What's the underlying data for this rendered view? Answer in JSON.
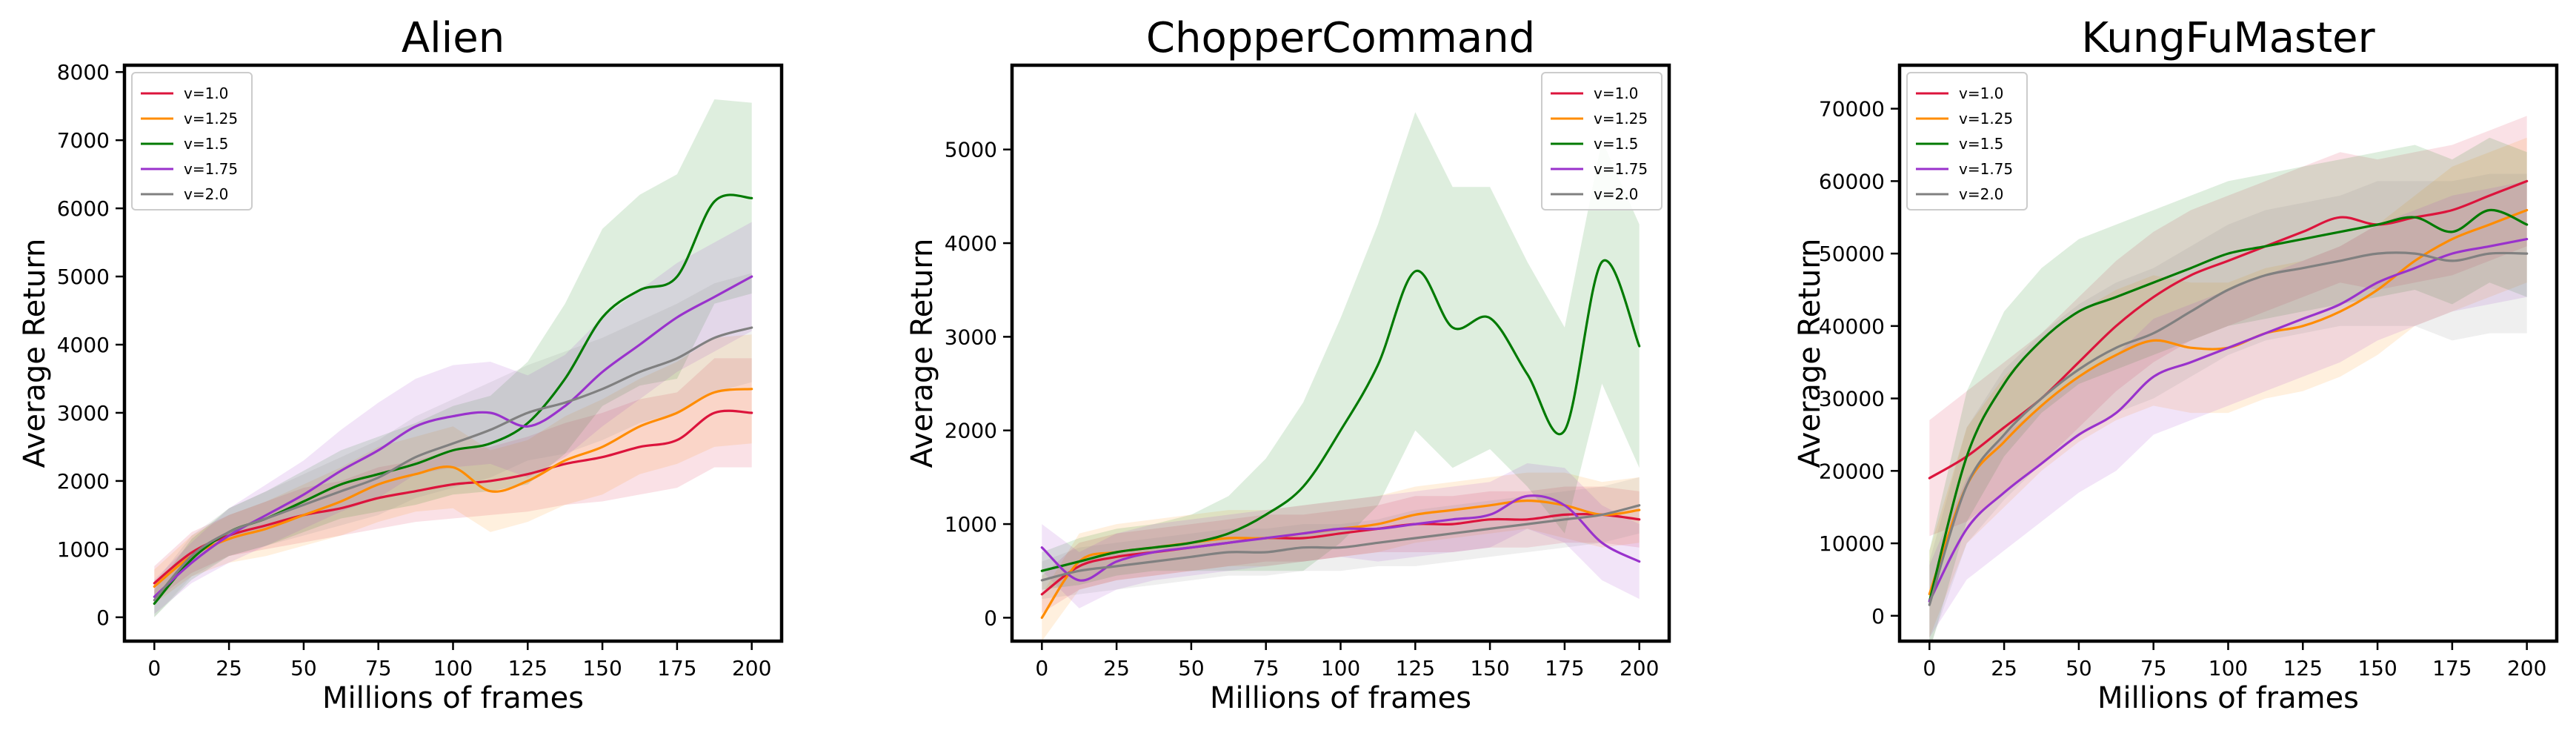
{
  "chart_data": [
    {
      "type": "line",
      "title": "Alien",
      "xlabel": "Millions of frames",
      "ylabel": "Average Return",
      "xlim": [
        -10,
        210
      ],
      "ylim": [
        -350,
        8100
      ],
      "xticks": [
        0,
        25,
        50,
        75,
        100,
        125,
        150,
        175,
        200
      ],
      "yticks": [
        0,
        1000,
        2000,
        3000,
        4000,
        5000,
        6000,
        7000,
        8000
      ],
      "legend_position": "top-left",
      "grid": false,
      "x": [
        0,
        12.5,
        25,
        37.5,
        50,
        62.5,
        75,
        87.5,
        100,
        112.5,
        125,
        137.5,
        150,
        162.5,
        175,
        187.5,
        200
      ],
      "series": [
        {
          "name": "v=1.0",
          "color": "#dc143c",
          "values": [
            500,
            950,
            1200,
            1350,
            1500,
            1600,
            1750,
            1850,
            1950,
            2000,
            2100,
            2250,
            2350,
            2500,
            2600,
            3000,
            3000
          ],
          "spread": [
            250,
            300,
            300,
            350,
            400,
            400,
            450,
            450,
            500,
            500,
            550,
            600,
            650,
            700,
            700,
            800,
            800
          ]
        },
        {
          "name": "v=1.25",
          "color": "#ff8c00",
          "values": [
            450,
            900,
            1150,
            1300,
            1500,
            1700,
            1950,
            2100,
            2200,
            1850,
            2000,
            2300,
            2500,
            2800,
            3000,
            3300,
            3350
          ],
          "spread": [
            250,
            300,
            350,
            400,
            450,
            500,
            550,
            550,
            600,
            600,
            600,
            650,
            700,
            700,
            750,
            800,
            800
          ]
        },
        {
          "name": "v=1.5",
          "color": "#007a00",
          "values": [
            200,
            850,
            1250,
            1450,
            1700,
            1950,
            2100,
            2250,
            2450,
            2550,
            2850,
            3500,
            4400,
            4800,
            5000,
            6100,
            6150
          ],
          "spread": [
            200,
            300,
            350,
            400,
            450,
            500,
            550,
            600,
            650,
            700,
            900,
            1100,
            1300,
            1400,
            1500,
            1500,
            1400
          ]
        },
        {
          "name": "v=1.75",
          "color": "#9932cc",
          "values": [
            300,
            800,
            1200,
            1500,
            1800,
            2150,
            2450,
            2800,
            2950,
            3000,
            2800,
            3100,
            3600,
            4000,
            4400,
            4700,
            5000
          ],
          "spread": [
            250,
            300,
            400,
            450,
            500,
            600,
            700,
            700,
            750,
            750,
            750,
            750,
            800,
            800,
            800,
            800,
            800
          ]
        },
        {
          "name": "v=2.0",
          "color": "#808080",
          "values": [
            250,
            900,
            1250,
            1450,
            1650,
            1850,
            2050,
            2350,
            2550,
            2750,
            3000,
            3150,
            3350,
            3600,
            3800,
            4100,
            4250
          ],
          "spread": [
            250,
            300,
            350,
            400,
            450,
            500,
            550,
            600,
            650,
            700,
            700,
            750,
            750,
            750,
            800,
            800,
            800
          ]
        }
      ]
    },
    {
      "type": "line",
      "title": "ChopperCommand",
      "xlabel": "Millions of frames",
      "ylabel": "Average Return",
      "xlim": [
        -10,
        210
      ],
      "ylim": [
        -250,
        5900
      ],
      "xticks": [
        0,
        25,
        50,
        75,
        100,
        125,
        150,
        175,
        200
      ],
      "yticks": [
        0,
        1000,
        2000,
        3000,
        4000,
        5000
      ],
      "legend_position": "top-right",
      "grid": false,
      "x": [
        0,
        12.5,
        25,
        37.5,
        50,
        62.5,
        75,
        87.5,
        100,
        112.5,
        125,
        137.5,
        150,
        162.5,
        175,
        187.5,
        200
      ],
      "series": [
        {
          "name": "v=1.0",
          "color": "#dc143c",
          "values": [
            250,
            550,
            650,
            700,
            750,
            800,
            850,
            850,
            900,
            950,
            1000,
            1000,
            1050,
            1050,
            1100,
            1100,
            1050
          ],
          "spread": [
            200,
            250,
            250,
            250,
            250,
            250,
            250,
            250,
            250,
            250,
            300,
            300,
            300,
            300,
            300,
            300,
            300
          ]
        },
        {
          "name": "v=1.25",
          "color": "#ff8c00",
          "values": [
            0,
            600,
            700,
            750,
            800,
            850,
            850,
            900,
            950,
            1000,
            1100,
            1150,
            1200,
            1250,
            1200,
            1100,
            1150
          ],
          "spread": [
            250,
            300,
            300,
            300,
            300,
            300,
            300,
            300,
            300,
            300,
            300,
            300,
            300,
            300,
            350,
            350,
            350
          ]
        },
        {
          "name": "v=1.5",
          "color": "#007a00",
          "values": [
            500,
            600,
            700,
            750,
            800,
            900,
            1100,
            1400,
            2000,
            2700,
            3700,
            3100,
            3200,
            2600,
            2000,
            3800,
            2900
          ],
          "spread": [
            200,
            250,
            250,
            250,
            300,
            400,
            600,
            900,
            1200,
            1500,
            1700,
            1500,
            1400,
            1200,
            1100,
            1300,
            1300
          ]
        },
        {
          "name": "v=1.75",
          "color": "#9932cc",
          "values": [
            750,
            400,
            600,
            700,
            750,
            800,
            850,
            900,
            950,
            950,
            1000,
            1050,
            1100,
            1300,
            1200,
            800,
            600
          ],
          "spread": [
            250,
            300,
            300,
            300,
            300,
            300,
            300,
            300,
            300,
            350,
            350,
            350,
            350,
            350,
            400,
            400,
            400
          ]
        },
        {
          "name": "v=2.0",
          "color": "#808080",
          "values": [
            400,
            500,
            550,
            600,
            650,
            700,
            700,
            750,
            750,
            800,
            850,
            900,
            950,
            1000,
            1050,
            1100,
            1200
          ],
          "spread": [
            200,
            250,
            250,
            250,
            250,
            250,
            250,
            250,
            250,
            250,
            300,
            300,
            300,
            300,
            300,
            300,
            300
          ]
        }
      ]
    },
    {
      "type": "line",
      "title": "KungFuMaster",
      "xlabel": "Millions of frames",
      "ylabel": "Average Return",
      "xlim": [
        -10,
        210
      ],
      "ylim": [
        -3500,
        76000
      ],
      "xticks": [
        0,
        25,
        50,
        75,
        100,
        125,
        150,
        175,
        200
      ],
      "yticks": [
        0,
        10000,
        20000,
        30000,
        40000,
        50000,
        60000,
        70000
      ],
      "legend_position": "top-left",
      "grid": false,
      "x": [
        0,
        12.5,
        25,
        37.5,
        50,
        62.5,
        75,
        87.5,
        100,
        112.5,
        125,
        137.5,
        150,
        162.5,
        175,
        187.5,
        200
      ],
      "series": [
        {
          "name": "v=1.0",
          "color": "#dc143c",
          "values": [
            19000,
            22000,
            26000,
            30000,
            35000,
            40000,
            44000,
            47000,
            49000,
            51000,
            53000,
            55000,
            54000,
            55000,
            56000,
            58000,
            60000
          ],
          "spread": [
            8000,
            9000,
            9000,
            9000,
            9000,
            9000,
            9000,
            9000,
            9000,
            9000,
            9000,
            9000,
            9000,
            9000,
            9000,
            9000,
            9000
          ]
        },
        {
          "name": "v=1.25",
          "color": "#ff8c00",
          "values": [
            3000,
            18000,
            24000,
            29000,
            33000,
            36000,
            38000,
            37000,
            37000,
            39000,
            40000,
            42000,
            45000,
            49000,
            52000,
            54000,
            56000
          ],
          "spread": [
            6000,
            8000,
            9000,
            9000,
            9000,
            9000,
            9000,
            9000,
            9000,
            9000,
            9000,
            9000,
            9000,
            9000,
            10000,
            10000,
            10000
          ]
        },
        {
          "name": "v=1.5",
          "color": "#007a00",
          "values": [
            2000,
            22000,
            32000,
            38000,
            42000,
            44000,
            46000,
            48000,
            50000,
            51000,
            52000,
            53000,
            54000,
            55000,
            53000,
            56000,
            54000
          ],
          "spread": [
            7000,
            9000,
            10000,
            10000,
            10000,
            10000,
            10000,
            10000,
            10000,
            10000,
            10000,
            10000,
            10000,
            10000,
            10000,
            10000,
            10000
          ]
        },
        {
          "name": "v=1.75",
          "color": "#9932cc",
          "values": [
            2000,
            12000,
            17000,
            21000,
            25000,
            28000,
            33000,
            35000,
            37000,
            39000,
            41000,
            43000,
            46000,
            48000,
            50000,
            51000,
            52000
          ],
          "spread": [
            5000,
            7000,
            8000,
            8000,
            8000,
            8000,
            8000,
            8000,
            8000,
            8000,
            8000,
            8000,
            8000,
            8000,
            8000,
            8000,
            8000
          ]
        },
        {
          "name": "v=2.0",
          "color": "#808080",
          "values": [
            1500,
            18000,
            25000,
            30000,
            34000,
            37000,
            39000,
            42000,
            45000,
            47000,
            48000,
            49000,
            50000,
            50000,
            49000,
            50000,
            50000
          ],
          "spread": [
            6000,
            8000,
            9000,
            9000,
            9000,
            9000,
            9000,
            9000,
            9000,
            9000,
            9000,
            9000,
            10000,
            10000,
            11000,
            11000,
            11000
          ]
        }
      ]
    }
  ]
}
